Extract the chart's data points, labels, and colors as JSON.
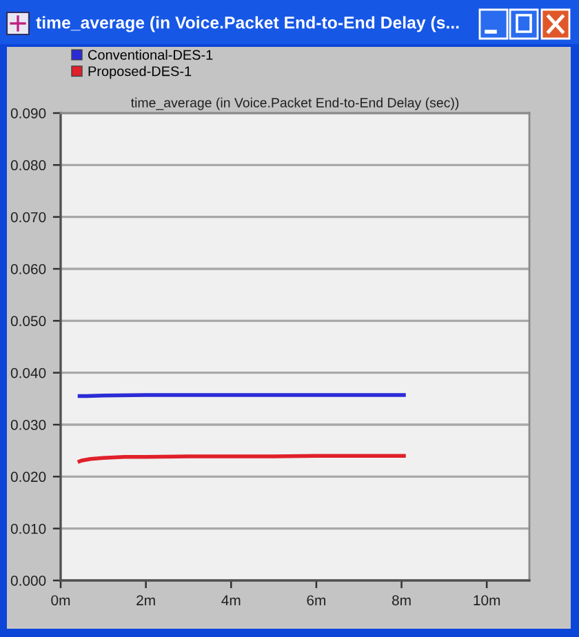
{
  "chart_data": {
    "type": "line",
    "title": "time_average (in Voice.Packet End-to-End Delay (s...",
    "subtitle": "time_average (in Voice.Packet End-to-End Delay (sec))",
    "xlim": [
      0,
      11
    ],
    "xticks": [
      {
        "value": 0,
        "label": "0m"
      },
      {
        "value": 2,
        "label": "2m"
      },
      {
        "value": 4,
        "label": "4m"
      },
      {
        "value": 6,
        "label": "6m"
      },
      {
        "value": 8,
        "label": "8m"
      },
      {
        "value": 10,
        "label": "10m"
      }
    ],
    "ylim": [
      0,
      0.09
    ],
    "yticks": [
      {
        "value": 0,
        "label": "0.000"
      },
      {
        "value": 0.01,
        "label": "0.010"
      },
      {
        "value": 0.02,
        "label": "0.020"
      },
      {
        "value": 0.03,
        "label": "0.030"
      },
      {
        "value": 0.04,
        "label": "0.040"
      },
      {
        "value": 0.05,
        "label": "0.050"
      },
      {
        "value": 0.06,
        "label": "0.060"
      },
      {
        "value": 0.07,
        "label": "0.070"
      },
      {
        "value": 0.08,
        "label": "0.080"
      },
      {
        "value": 0.09,
        "label": "0.090"
      }
    ],
    "grid": "y",
    "legend": "top left",
    "series": [
      {
        "name": "Conventional-DES-1",
        "color": "#2b2bd6",
        "x": [
          0.4,
          0.6,
          1,
          2,
          3,
          4,
          5,
          6,
          7,
          8,
          8.1
        ],
        "values": [
          0.0355,
          0.0355,
          0.0356,
          0.0357,
          0.0357,
          0.0357,
          0.0357,
          0.0357,
          0.0357,
          0.0357,
          0.0357
        ]
      },
      {
        "name": "Proposed-DES-1",
        "color": "#e0202a",
        "x": [
          0.4,
          0.5,
          0.7,
          1,
          1.5,
          2,
          3,
          4,
          5,
          6,
          7,
          8,
          8.1
        ],
        "values": [
          0.0228,
          0.0231,
          0.0234,
          0.0236,
          0.0238,
          0.0238,
          0.0239,
          0.0239,
          0.0239,
          0.024,
          0.024,
          0.024,
          0.024
        ]
      }
    ]
  }
}
